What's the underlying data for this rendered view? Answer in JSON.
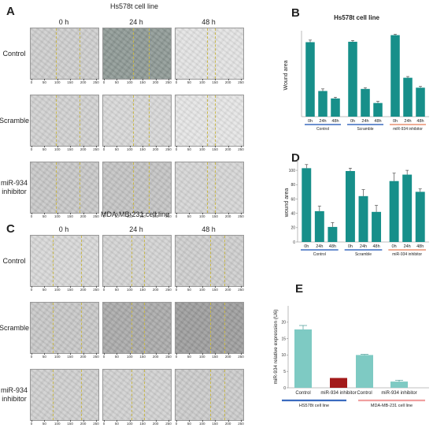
{
  "panels": {
    "A": {
      "letter": "A",
      "title": "Hs578t cell line"
    },
    "B": {
      "letter": "B"
    },
    "C": {
      "letter": "C",
      "title": "MDA-MB-231  cell line"
    },
    "D": {
      "letter": "D"
    },
    "E": {
      "letter": "E"
    }
  },
  "micrographs": {
    "columns": [
      "0 h",
      "24 h",
      "48 h"
    ],
    "rows": [
      "Control",
      "Scramble",
      "miR-934 inhibitor"
    ],
    "ruler_ticks": [
      "0",
      "50",
      "100",
      "150",
      "200",
      "250"
    ],
    "row_labels_line1": [
      "Control",
      "Scramble",
      "miR-934"
    ],
    "row_labels_line2": [
      "",
      "",
      "inhibitor"
    ]
  },
  "chart_data": [
    {
      "id": "B",
      "type": "bar",
      "title": "Hs578t cell line",
      "ylabel": "Wound area",
      "ylim": [
        0,
        200
      ],
      "yticks": [],
      "groups": [
        "Control",
        "Scramble",
        "miR-934 inhibitor"
      ],
      "group_line_colors": [
        "#3b6bbf",
        "#3b6bbf",
        "#e89070"
      ],
      "x": [
        "0h",
        "24h",
        "48h",
        "0h",
        "24h",
        "48h",
        "0h",
        "24h",
        "48h"
      ],
      "values": [
        180,
        62,
        44,
        181,
        67,
        33,
        197,
        94,
        70
      ],
      "errors": [
        5,
        5,
        3,
        3,
        3,
        4,
        2,
        3,
        3
      ],
      "color": "#178f8a"
    },
    {
      "id": "D",
      "type": "bar",
      "title": "MDA-MB-231 cell line",
      "ylabel": "wound area",
      "ylim": [
        0,
        110
      ],
      "yticks": [
        "0",
        "20",
        "40",
        "60",
        "80",
        "100"
      ],
      "ytick_values": [
        0,
        20,
        40,
        60,
        80,
        100
      ],
      "groups": [
        "Control",
        "Scramble",
        "miR-934 inhibitor"
      ],
      "group_line_colors": [
        "#3b6bbf",
        "#3b6bbf",
        "#e89070"
      ],
      "x": [
        "0h",
        "24h",
        "48h",
        "0h",
        "24h",
        "48h",
        "0h",
        "24h",
        "48h"
      ],
      "values": [
        103,
        43,
        21,
        99,
        64,
        42,
        85,
        94,
        70
      ],
      "errors": [
        5,
        7,
        6,
        4,
        9,
        9,
        11,
        6,
        4
      ],
      "color": "#178f8a"
    },
    {
      "id": "E",
      "type": "bar",
      "ylabel": "miR-934 relative expression (U6)",
      "ylim": [
        0,
        25
      ],
      "yticks": [
        "0",
        "5",
        "10",
        "15",
        "20"
      ],
      "ytick_values": [
        0,
        5,
        10,
        15,
        20
      ],
      "categories": [
        "Control",
        "miR-934 inhibitor",
        "Control",
        "miR-934 inhibitor"
      ],
      "values": [
        17.8,
        3.0,
        10.0,
        1.9
      ],
      "errors": [
        1.2,
        0,
        0.2,
        0.4
      ],
      "colors": [
        "#7ecac3",
        "#a31a1a",
        "#7ecac3",
        "#7ecac3"
      ],
      "groups": [
        "HS578t cell line",
        "MDA-MB-231 cell line"
      ],
      "group_line_colors": [
        "#3b6bbf",
        "#f0a0a0"
      ]
    }
  ]
}
